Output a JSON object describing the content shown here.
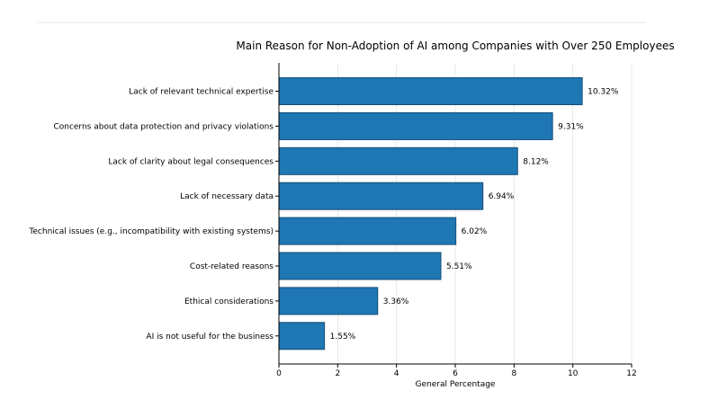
{
  "chart_data": {
    "type": "bar",
    "orientation": "horizontal",
    "title": "Main Reason for Non-Adoption of AI among Companies with Over 250 Employees",
    "xlabel": "General Percentage",
    "ylabel": "",
    "xlim": [
      0,
      12
    ],
    "xticks": [
      0,
      2,
      4,
      6,
      8,
      10,
      12
    ],
    "grid": "vertical",
    "bar_color": "#1f77b4",
    "categories": [
      "Lack of relevant technical expertise",
      "Concerns about data protection and privacy violations",
      "Lack of clarity about legal consequences",
      "Lack of necessary data",
      "Technical issues (e.g., incompatibility with existing systems)",
      "Cost-related reasons",
      "Ethical considerations",
      "AI is not useful for the business"
    ],
    "values": [
      10.32,
      9.31,
      8.12,
      6.94,
      6.02,
      5.51,
      3.36,
      1.55
    ],
    "value_labels": [
      "10.32%",
      "9.31%",
      "8.12%",
      "6.94%",
      "6.02%",
      "5.51%",
      "3.36%",
      "1.55%"
    ]
  }
}
